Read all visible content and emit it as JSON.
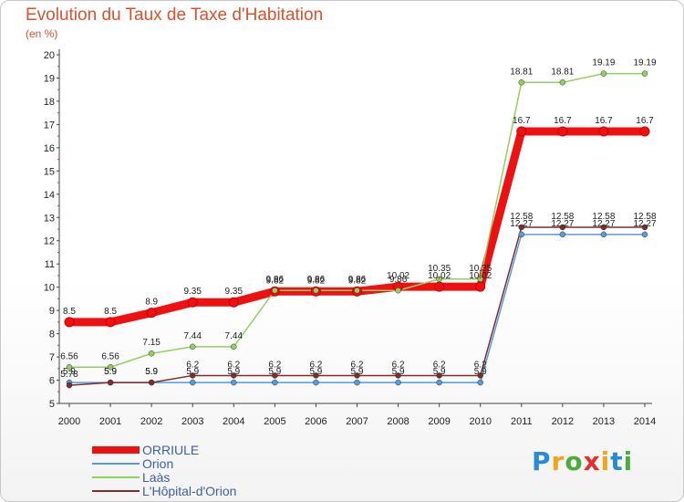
{
  "header": {
    "title": "Evolution du Taux de Taxe d'Habitation",
    "subtitle": "(en %)"
  },
  "logo": {
    "letters": [
      "P",
      "r",
      "o",
      "x",
      "i",
      "t",
      "i"
    ],
    "colors": [
      "#2a8ad5",
      "#f2a41c",
      "#4cab3c",
      "#e1312a",
      "#f2a41c",
      "#2a8ad5",
      "#4cab3c"
    ]
  },
  "chart_data": {
    "type": "line",
    "x": [
      "2000",
      "2001",
      "2002",
      "2003",
      "2004",
      "2005",
      "2006",
      "2007",
      "2008",
      "2009",
      "2010",
      "2011",
      "2012",
      "2013",
      "2014"
    ],
    "ylim": [
      5,
      20
    ],
    "yticks": [
      "5",
      "6",
      "7",
      "8",
      "9",
      "10",
      "11",
      "12",
      "13",
      "14",
      "15",
      "16",
      "17",
      "18",
      "19",
      "20"
    ],
    "grid": false,
    "legend_position": "bottom-left",
    "series": [
      {
        "name": "ORRIULE",
        "color": "#ee1111",
        "values": [
          8.5,
          8.5,
          8.9,
          9.35,
          9.35,
          9.82,
          9.82,
          9.82,
          10.02,
          10.02,
          10.02,
          16.7,
          16.7,
          16.7,
          16.7
        ],
        "labels": [
          "8.5",
          "8.5",
          "8.9",
          "9.35",
          "9.35",
          "9.82",
          "9.82",
          "9.82",
          "10.02",
          "10.02",
          "10.02",
          "16.7",
          "16.7",
          "16.7",
          "16.7"
        ]
      },
      {
        "name": "Orion",
        "color": "#5b9bd5",
        "values": [
          5.9,
          5.9,
          5.9,
          5.9,
          5.9,
          5.9,
          5.9,
          5.9,
          5.9,
          5.9,
          5.9,
          12.27,
          12.27,
          12.27,
          12.27
        ],
        "labels": [
          "5.9",
          "5.9",
          "5.9",
          "5.9",
          "5.9",
          "5.9",
          "5.9",
          "5.9",
          "5.9",
          "5.9",
          "5.9",
          "12.27",
          "12.27",
          "12.27",
          "12.27"
        ]
      },
      {
        "name": "Laàs",
        "color": "#8fd160",
        "values": [
          6.56,
          6.56,
          7.15,
          7.44,
          7.44,
          9.86,
          9.86,
          9.86,
          9.86,
          10.35,
          10.35,
          18.81,
          18.81,
          19.19,
          19.19
        ],
        "labels": [
          "6.56",
          "6.56",
          "7.15",
          "7.44",
          "7.44",
          "9.86",
          "9.86",
          "9.86",
          "9.86",
          "10.35",
          "10.35",
          "18.81",
          "18.81",
          "19.19",
          "19.19"
        ]
      },
      {
        "name": "L'Hôpital-d'Orion",
        "color": "#7b2e2e",
        "values": [
          5.78,
          5.9,
          5.9,
          6.2,
          6.2,
          6.2,
          6.2,
          6.2,
          6.2,
          6.2,
          6.2,
          12.58,
          12.58,
          12.58,
          12.58
        ],
        "labels": [
          "5.78",
          "5.9",
          "5.9",
          "6.2",
          "6.2",
          "6.2",
          "6.2",
          "6.2",
          "6.2",
          "6.2",
          "6.2",
          "12.58",
          "12.58",
          "12.58",
          "12.58"
        ]
      }
    ]
  }
}
